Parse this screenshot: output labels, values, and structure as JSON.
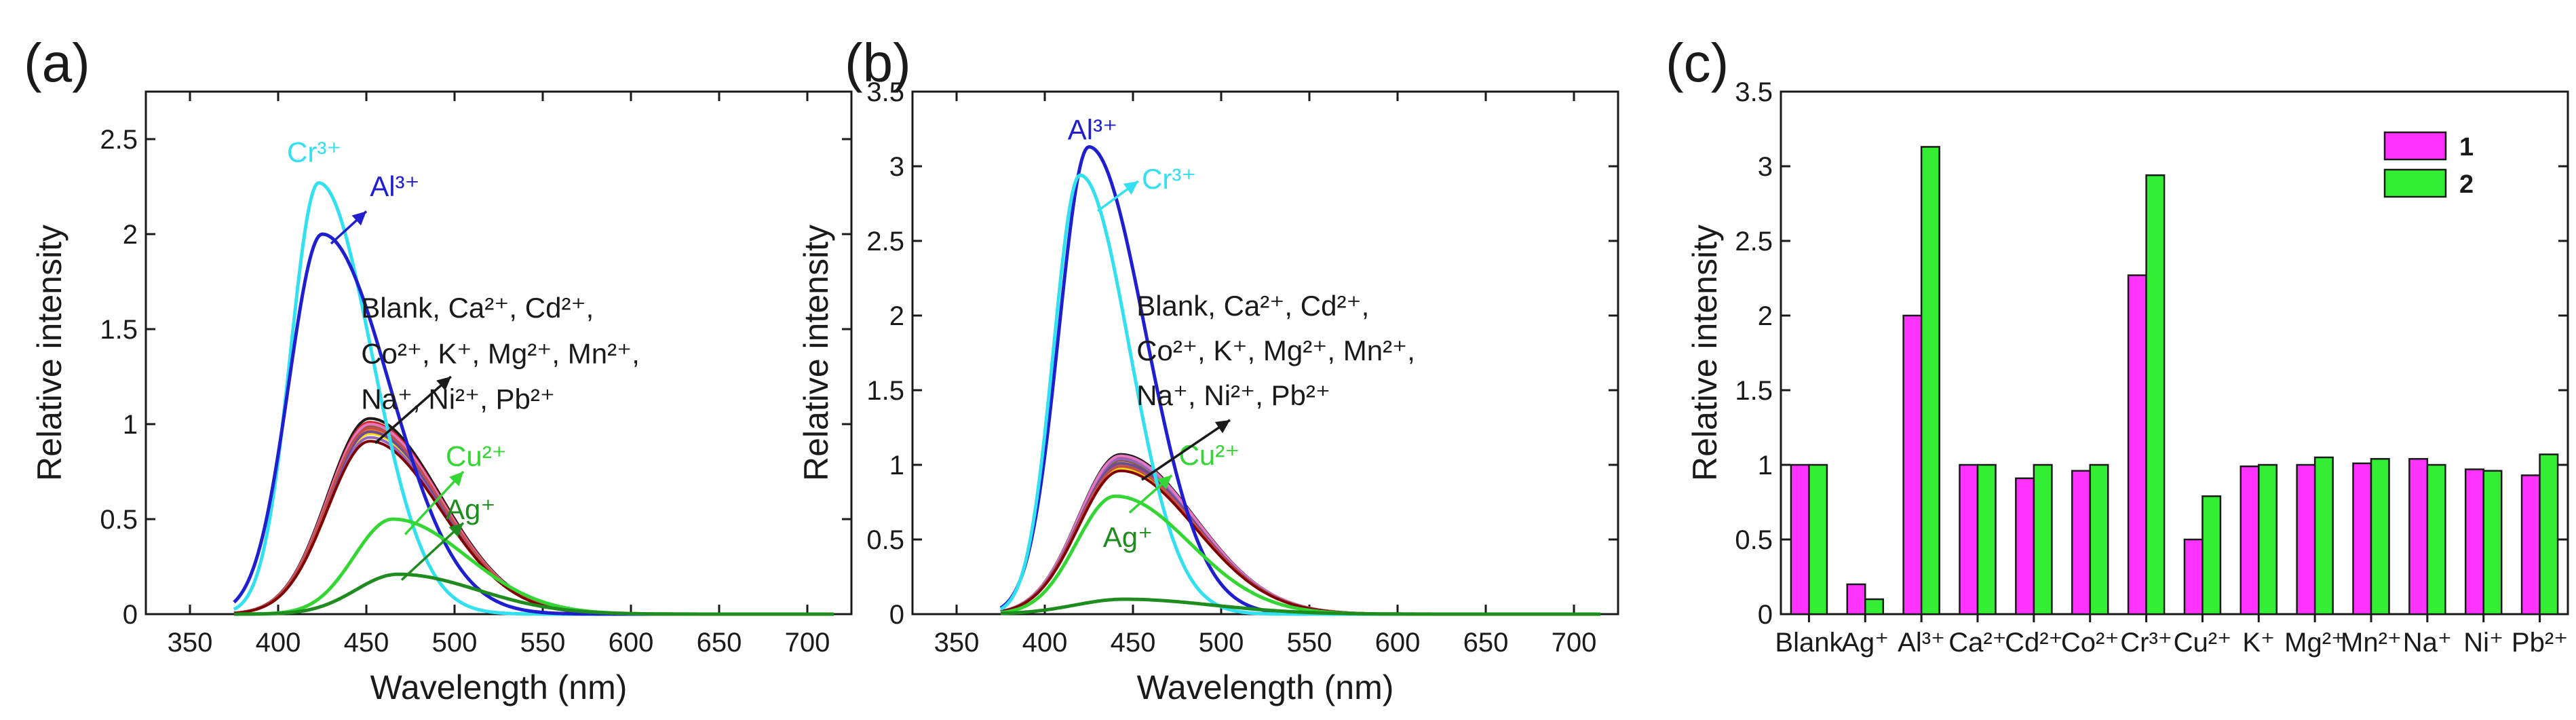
{
  "colors": {
    "blank_group": [
      "#1a1a1a",
      "#d62728",
      "#8a5a2b",
      "#ff7f0e",
      "#ffd700",
      "#9467bd",
      "#e377c2",
      "#6b4c9a",
      "#c0504d",
      "#800000"
    ],
    "cr": "#33e0f0",
    "al": "#1f1fd0",
    "cu": "#33d633",
    "ag": "#1e8c1e",
    "bar1": "#ff33ff",
    "bar2": "#33ee33"
  },
  "chart_data": [
    {
      "type": "line",
      "panel_label": "(a)",
      "xlabel": "Wavelength (nm)",
      "ylabel": "Relative intensity",
      "xlim": [
        325,
        725
      ],
      "ylim": [
        0,
        2.75
      ],
      "xticks": [
        350,
        400,
        450,
        500,
        550,
        600,
        650,
        700
      ],
      "yticks": [
        0.0,
        0.5,
        1.0,
        1.5,
        2.0,
        2.5
      ],
      "x_start": 375,
      "series": [
        {
          "name": "Blank, Ca²⁺, Cd²⁺, Co²⁺, K⁺, Mg²⁺, Mn²⁺, Na⁺, Ni²⁺, Pb²⁺",
          "shape": "gauss",
          "peak_x": 452,
          "peak_y": 1.03,
          "sigma_left": 24,
          "sigma_right": 40,
          "variants": [
            1.03,
            1.01,
            0.99,
            0.97,
            0.95,
            0.93,
            1.0,
            0.96,
            0.98,
            0.91
          ]
        },
        {
          "name": "Cr³⁺",
          "shape": "gauss",
          "peak_x": 423,
          "peak_y": 2.27,
          "sigma_left": 16,
          "sigma_right": 30
        },
        {
          "name": "Al³⁺",
          "shape": "gauss",
          "peak_x": 425,
          "peak_y": 2.0,
          "sigma_left": 19,
          "sigma_right": 38
        },
        {
          "name": "Cu²⁺",
          "shape": "gauss",
          "peak_x": 465,
          "peak_y": 0.5,
          "sigma_left": 22,
          "sigma_right": 42
        },
        {
          "name": "Ag⁺",
          "shape": "gauss",
          "peak_x": 468,
          "peak_y": 0.21,
          "sigma_left": 24,
          "sigma_right": 45
        }
      ],
      "annotations": [
        {
          "text": "Cr³⁺",
          "x": 405,
          "y": 2.38
        },
        {
          "text": "Al³⁺",
          "x": 452,
          "y": 2.2
        },
        {
          "text": "Blank, Ca²⁺, Cd²⁺,",
          "x": 447,
          "y": 1.56
        },
        {
          "text": "Co²⁺, K⁺, Mg²⁺, Mn²⁺,",
          "x": 447,
          "y": 1.32
        },
        {
          "text": "Na⁺, Ni²⁺, Pb²⁺",
          "x": 447,
          "y": 1.08
        },
        {
          "text": "Cu²⁺",
          "x": 495,
          "y": 0.78
        },
        {
          "text": "Ag⁺",
          "x": 495,
          "y": 0.5
        }
      ]
    },
    {
      "type": "line",
      "panel_label": "(b)",
      "xlabel": "Wavelength (nm)",
      "ylabel": "Relative intensity",
      "xlim": [
        325,
        725
      ],
      "ylim": [
        0,
        3.5
      ],
      "xticks": [
        350,
        400,
        450,
        500,
        550,
        600,
        650,
        700
      ],
      "yticks": [
        0.0,
        0.5,
        1.0,
        1.5,
        2.0,
        2.5,
        3.0,
        3.5
      ],
      "x_start": 375,
      "series": [
        {
          "name": "Blank, Ca²⁺, Cd²⁺, Co²⁺, K⁺, Mg²⁺, Mn²⁺, Na⁺, Ni²⁺, Pb²⁺",
          "shape": "gauss",
          "peak_x": 443,
          "peak_y": 1.07,
          "sigma_left": 24,
          "sigma_right": 42,
          "variants": [
            1.07,
            1.05,
            1.03,
            1.0,
            0.98,
            1.04,
            1.06,
            1.01,
            0.99,
            0.96
          ]
        },
        {
          "name": "Al³⁺",
          "shape": "gauss",
          "peak_x": 425,
          "peak_y": 3.13,
          "sigma_left": 17,
          "sigma_right": 32
        },
        {
          "name": "Cr³⁺",
          "shape": "gauss",
          "peak_x": 420,
          "peak_y": 2.94,
          "sigma_left": 15,
          "sigma_right": 28
        },
        {
          "name": "Cu²⁺",
          "shape": "gauss",
          "peak_x": 440,
          "peak_y": 0.79,
          "sigma_left": 22,
          "sigma_right": 42
        },
        {
          "name": "Ag⁺",
          "shape": "gauss",
          "peak_x": 445,
          "peak_y": 0.1,
          "sigma_left": 28,
          "sigma_right": 50
        }
      ],
      "annotations": [
        {
          "text": "Al³⁺",
          "x": 413,
          "y": 3.18
        },
        {
          "text": "Cr³⁺",
          "x": 455,
          "y": 2.85
        },
        {
          "text": "Blank, Ca²⁺, Cd²⁺,",
          "x": 452,
          "y": 2.0
        },
        {
          "text": "Co²⁺, K⁺, Mg²⁺, Mn²⁺,",
          "x": 452,
          "y": 1.7
        },
        {
          "text": "Na⁺, Ni²⁺, Pb²⁺",
          "x": 452,
          "y": 1.4
        },
        {
          "text": "Cu²⁺",
          "x": 476,
          "y": 1.0
        },
        {
          "text": "Ag⁺",
          "x": 433,
          "y": 0.45
        }
      ]
    },
    {
      "type": "bar",
      "panel_label": "(c)",
      "xlabel": "",
      "ylabel": "Relative intensity",
      "ylim": [
        0,
        3.5
      ],
      "yticks": [
        0.0,
        0.5,
        1.0,
        1.5,
        2.0,
        2.5,
        3.0,
        3.5
      ],
      "categories": [
        "Blank",
        "Ag⁺",
        "Al³⁺",
        "Ca²⁺",
        "Cd²⁺",
        "Co²⁺",
        "Cr³⁺",
        "Cu²⁺",
        "K⁺",
        "Mg²⁺",
        "Mn²⁺",
        "Na⁺",
        "Ni⁺",
        "Pb²⁺"
      ],
      "series": [
        {
          "name": "1",
          "values": [
            1.0,
            0.2,
            2.0,
            1.0,
            0.91,
            0.96,
            2.27,
            0.5,
            0.99,
            1.0,
            1.01,
            1.04,
            0.97,
            0.93
          ]
        },
        {
          "name": "2",
          "values": [
            1.0,
            0.1,
            3.13,
            1.0,
            1.0,
            1.0,
            2.94,
            0.79,
            1.0,
            1.05,
            1.04,
            1.0,
            0.96,
            1.07
          ]
        }
      ],
      "legend": "top-right"
    }
  ]
}
